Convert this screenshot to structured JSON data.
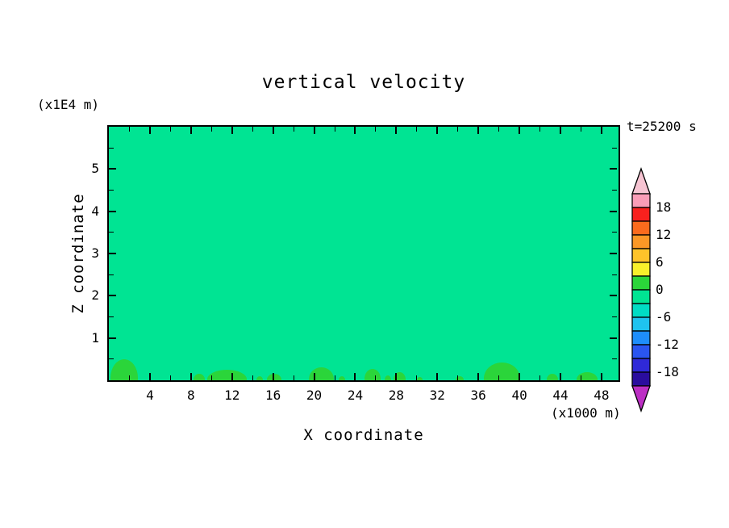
{
  "title": "vertical velocity",
  "time_label": "t=25200 s",
  "x_axis": {
    "label": "X coordinate",
    "unit": "(x1000 m)",
    "ticks": [
      4,
      8,
      12,
      16,
      20,
      24,
      28,
      32,
      36,
      40,
      44,
      48
    ],
    "range": [
      0,
      49.5
    ]
  },
  "y_axis": {
    "label": "Z coordinate",
    "unit": "(x1E4 m)",
    "ticks": [
      1,
      2,
      3,
      4,
      5
    ],
    "range": [
      0,
      6
    ]
  },
  "colorbar": {
    "labels": [
      "18",
      "12",
      "6",
      "0",
      "-6",
      "-12",
      "-18"
    ],
    "interval": 3,
    "range": [
      -21,
      21
    ],
    "arrow_top_color": "#F6C4D2",
    "arrow_bottom_color": "#BC2FC4",
    "segment_colors": [
      "#FA9DB7",
      "#F8211E",
      "#FB6B1D",
      "#FC9826",
      "#FDC32A",
      "#F8F02B",
      "#2BD53A",
      "#00E493",
      "#00DCC4",
      "#1FC3EF",
      "#1E8EFB",
      "#2A55F0",
      "#2F29D8",
      "#2A0D9E"
    ]
  },
  "plot": {
    "background_color": "#00E493",
    "updraft_color": "#2BD53A",
    "frame_color": "#000000"
  },
  "chart_data": {
    "type": "contour",
    "title": "vertical velocity",
    "field": "vertical velocity",
    "time": "t=25200 s",
    "xlabel": "X coordinate (x1000 m)",
    "ylabel": "Z coordinate (x1E4 m)",
    "x_range": [
      0,
      49.5
    ],
    "y_range": [
      0,
      6
    ],
    "contour_interval": 3,
    "levels": [
      -21,
      -18,
      -15,
      -12,
      -9,
      -6,
      -3,
      0,
      3,
      6,
      9,
      12,
      15,
      18,
      21
    ],
    "background_band": {
      "range": [
        -3,
        0
      ],
      "color": "#00E493",
      "note": "near-zero vertical velocity over almost the entire domain"
    },
    "surface_updraft_cells": [
      {
        "x": 1.5,
        "width": 2.7,
        "height": 0.49
      },
      {
        "x": 8.8,
        "width": 1.1,
        "height": 0.15
      },
      {
        "x": 11.5,
        "width": 3.9,
        "height": 0.25
      },
      {
        "x": 14.7,
        "width": 0.6,
        "height": 0.09
      },
      {
        "x": 16.1,
        "width": 1.4,
        "height": 0.15
      },
      {
        "x": 20.7,
        "width": 2.4,
        "height": 0.3
      },
      {
        "x": 22.7,
        "width": 0.6,
        "height": 0.09
      },
      {
        "x": 25.7,
        "width": 1.6,
        "height": 0.26
      },
      {
        "x": 27.2,
        "width": 0.6,
        "height": 0.11
      },
      {
        "x": 28.3,
        "width": 1.2,
        "height": 0.19
      },
      {
        "x": 30.3,
        "width": 0.6,
        "height": 0.08
      },
      {
        "x": 34.2,
        "width": 0.8,
        "height": 0.09
      },
      {
        "x": 38.3,
        "width": 3.6,
        "height": 0.42
      },
      {
        "x": 43.2,
        "width": 1.1,
        "height": 0.15
      },
      {
        "x": 46.6,
        "width": 2.0,
        "height": 0.19
      }
    ]
  }
}
